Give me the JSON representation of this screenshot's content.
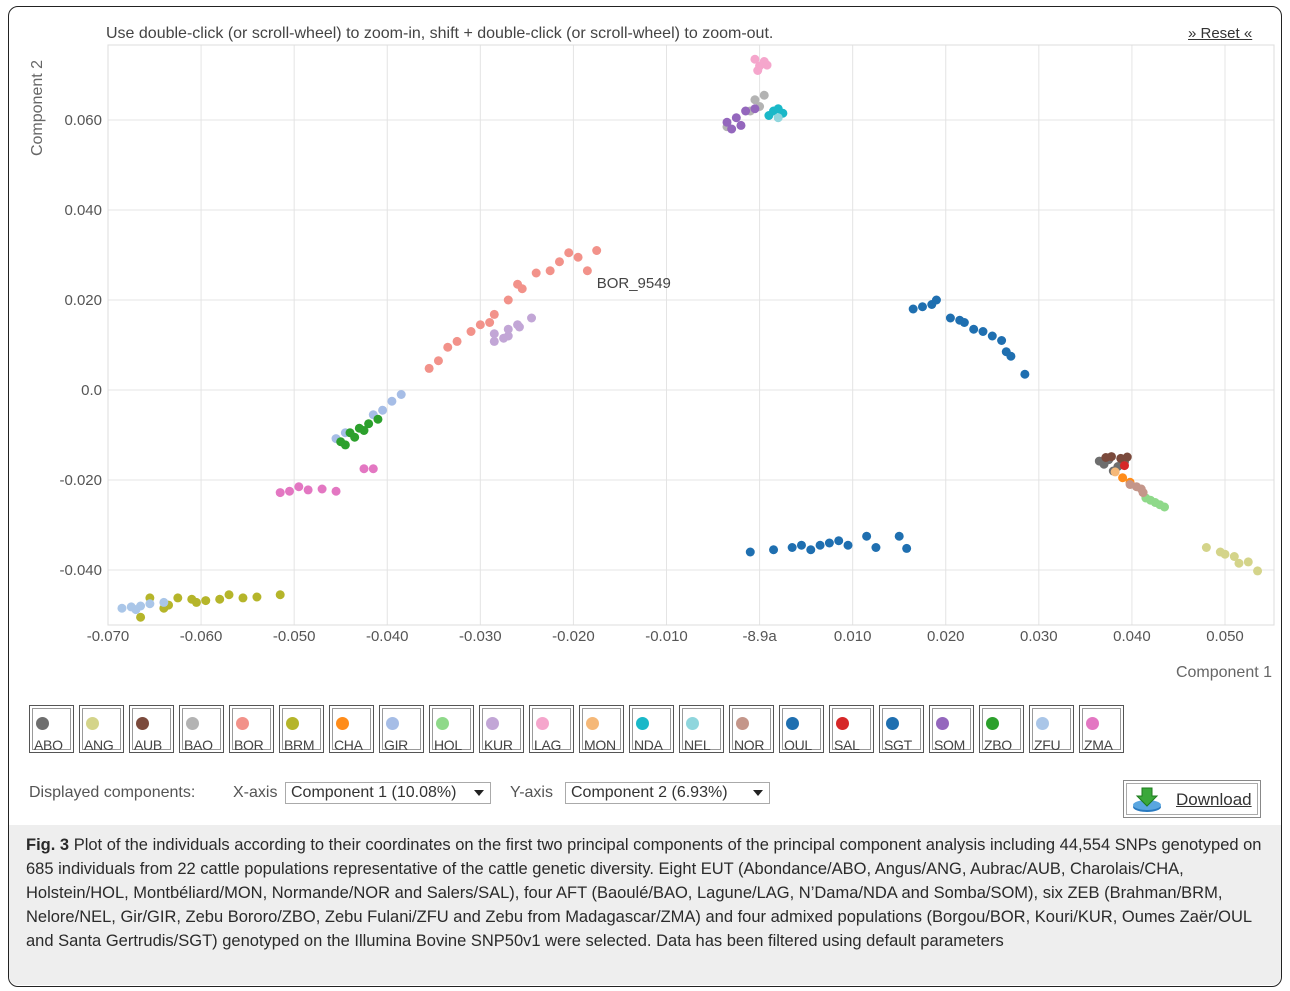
{
  "header": {
    "hint": "Use double-click (or scroll-wheel) to zoom-in, shift + double-click (or scroll-wheel) to zoom-out.",
    "reset": "» Reset «"
  },
  "controls": {
    "displayed_label": "Displayed components:",
    "x_label": "X-axis",
    "x_value": "Component 1 (10.08%)",
    "y_label": "Y-axis",
    "y_value": "Component 2 (6.93%)",
    "download": "Download"
  },
  "caption": {
    "fig": "Fig. 3",
    "text": "Plot of the individuals according to their coordinates on the first two principal components of the principal component analysis including 44,554 SNPs genotyped on 685 individuals from 22 cattle populations representative of the cattle genetic diversity. Eight EUT (Abondance/ABO, Angus/ANG, Aubrac/AUB, Charolais/CHA, Holstein/HOL, Montbéliard/MON, Normande/NOR and Salers/SAL), four AFT (Baoulé/BAO, Lagune/LAG, N’Dama/NDA and Somba/SOM), six ZEB (Brahman/BRM, Nelore/NEL, Gir/GIR, Zebu Bororo/ZBO, Zebu Fulani/ZFU and Zebu from Madagascar/ZMA) and four admixed populations (Borgou/BOR, Kouri/KUR, Oumes Zaër/OUL and Santa Gertrudis/SGT) genotyped on the Illumina Bovine SNP50v1 were selected. Data has been filtered using default parameters"
  },
  "chart_data": {
    "type": "scatter",
    "xlabel": "Component 1",
    "ylabel": "Component 2",
    "xlim": [
      -0.07,
      0.055
    ],
    "ylim": [
      -0.052,
      0.075
    ],
    "x_ticks": [
      "-0.070",
      "-0.060",
      "-0.050",
      "-0.040",
      "-0.030",
      "-0.020",
      "-0.010",
      "-8.9a",
      "0.010",
      "0.020",
      "0.030",
      "0.040",
      "0.050"
    ],
    "x_tick_values": [
      -0.07,
      -0.06,
      -0.05,
      -0.04,
      -0.03,
      -0.02,
      -0.01,
      0.0,
      0.01,
      0.02,
      0.03,
      0.04,
      0.05
    ],
    "y_ticks": [
      "-0.040",
      "-0.020",
      "0.0",
      "0.020",
      "0.040",
      "0.060"
    ],
    "y_tick_values": [
      -0.04,
      -0.02,
      0.0,
      0.02,
      0.04,
      0.06
    ],
    "grid": true,
    "annotation": {
      "text": "BOR_9549",
      "x": -0.0175,
      "y": 0.0238
    },
    "series": [
      {
        "name": "ABO",
        "color": "#6e6e6e",
        "points": [
          [
            0.0375,
            -0.0155
          ],
          [
            0.0385,
            -0.017
          ],
          [
            0.037,
            -0.0165
          ],
          [
            0.0392,
            -0.016
          ],
          [
            0.038,
            -0.018
          ],
          [
            0.0365,
            -0.0158
          ]
        ]
      },
      {
        "name": "ANG",
        "color": "#d4d48a",
        "points": [
          [
            0.048,
            -0.035
          ],
          [
            0.0495,
            -0.036
          ],
          [
            0.051,
            -0.037
          ],
          [
            0.0515,
            -0.0385
          ],
          [
            0.0525,
            -0.0382
          ],
          [
            0.05,
            -0.0365
          ],
          [
            0.0535,
            -0.0402
          ]
        ]
      },
      {
        "name": "AUB",
        "color": "#7b4a3c",
        "points": [
          [
            0.0378,
            -0.0148
          ],
          [
            0.0388,
            -0.0152
          ],
          [
            0.0395,
            -0.0149
          ],
          [
            0.0372,
            -0.015
          ]
        ]
      },
      {
        "name": "BAO",
        "color": "#b3b3b3",
        "points": [
          [
            -0.0005,
            0.0645
          ],
          [
            0.0005,
            0.0655
          ],
          [
            0.0,
            0.063
          ],
          [
            -0.001,
            0.062
          ],
          [
            -0.0035,
            0.0585
          ]
        ]
      },
      {
        "name": "BOR",
        "color": "#f2928a",
        "points": [
          [
            -0.0175,
            0.031
          ],
          [
            -0.0195,
            0.0295
          ],
          [
            -0.0205,
            0.0305
          ],
          [
            -0.0225,
            0.0265
          ],
          [
            -0.024,
            0.026
          ],
          [
            -0.0255,
            0.0225
          ],
          [
            -0.027,
            0.02
          ],
          [
            -0.0285,
            0.0168
          ],
          [
            -0.029,
            0.015
          ],
          [
            -0.03,
            0.0145
          ],
          [
            -0.031,
            0.013
          ],
          [
            -0.0325,
            0.0108
          ],
          [
            -0.0335,
            0.0095
          ],
          [
            -0.0345,
            0.0065
          ],
          [
            -0.0355,
            0.0048
          ],
          [
            -0.0185,
            0.0265
          ],
          [
            -0.0215,
            0.0285
          ],
          [
            -0.026,
            0.0235
          ]
        ]
      },
      {
        "name": "BRM",
        "color": "#b5b52a",
        "points": [
          [
            -0.0515,
            -0.0455
          ],
          [
            -0.054,
            -0.046
          ],
          [
            -0.0555,
            -0.0462
          ],
          [
            -0.057,
            -0.0455
          ],
          [
            -0.058,
            -0.0465
          ],
          [
            -0.0595,
            -0.0468
          ],
          [
            -0.061,
            -0.0465
          ],
          [
            -0.0625,
            -0.0462
          ],
          [
            -0.0635,
            -0.0478
          ],
          [
            -0.064,
            -0.0485
          ],
          [
            -0.0655,
            -0.0462
          ],
          [
            -0.0665,
            -0.0505
          ],
          [
            -0.0605,
            -0.0472
          ]
        ]
      },
      {
        "name": "CHA",
        "color": "#ff8c1a",
        "points": [
          [
            0.039,
            -0.0195
          ],
          [
            0.0398,
            -0.0205
          ]
        ]
      },
      {
        "name": "GIR",
        "color": "#a6bde6",
        "points": [
          [
            -0.0385,
            -0.001
          ],
          [
            -0.0395,
            -0.0025
          ],
          [
            -0.0405,
            -0.0045
          ],
          [
            -0.0415,
            -0.0055
          ],
          [
            -0.0455,
            -0.0108
          ],
          [
            -0.0445,
            -0.0095
          ]
        ]
      },
      {
        "name": "HOL",
        "color": "#8fd98a",
        "points": [
          [
            0.0415,
            -0.024
          ],
          [
            0.0425,
            -0.025
          ],
          [
            0.0435,
            -0.026
          ],
          [
            0.043,
            -0.0255
          ],
          [
            0.042,
            -0.0245
          ]
        ]
      },
      {
        "name": "KUR",
        "color": "#c2a6d6",
        "points": [
          [
            -0.0245,
            0.016
          ],
          [
            -0.026,
            0.0145
          ],
          [
            -0.027,
            0.0135
          ],
          [
            -0.0285,
            0.0125
          ],
          [
            -0.0275,
            0.0115
          ],
          [
            -0.0285,
            0.0108
          ],
          [
            -0.027,
            0.012
          ],
          [
            -0.0258,
            0.014
          ]
        ]
      },
      {
        "name": "LAG",
        "color": "#f5a6cc",
        "points": [
          [
            -0.0005,
            0.0735
          ],
          [
            0.0005,
            0.073
          ],
          [
            0.0,
            0.072
          ],
          [
            -0.0002,
            0.071
          ],
          [
            0.0008,
            0.0722
          ]
        ]
      },
      {
        "name": "MON",
        "color": "#f5b878",
        "points": [
          [
            0.0382,
            -0.0182
          ]
        ]
      },
      {
        "name": "NDA",
        "color": "#1ab8c8",
        "points": [
          [
            0.0015,
            0.062
          ],
          [
            0.001,
            0.061
          ],
          [
            0.002,
            0.0625
          ],
          [
            0.0025,
            0.0615
          ]
        ]
      },
      {
        "name": "NEL",
        "color": "#8fd6dd",
        "points": [
          [
            0.002,
            0.0605
          ]
        ]
      },
      {
        "name": "NOR",
        "color": "#c4968a",
        "points": [
          [
            0.0405,
            -0.0215
          ],
          [
            0.041,
            -0.022
          ],
          [
            0.0398,
            -0.021
          ],
          [
            0.0412,
            -0.0228
          ]
        ]
      },
      {
        "name": "OUL",
        "color": "#1f6fb0",
        "points": [
          [
            -0.001,
            -0.036
          ],
          [
            0.0015,
            -0.0355
          ],
          [
            0.0035,
            -0.035
          ],
          [
            0.0045,
            -0.0345
          ],
          [
            0.0055,
            -0.0355
          ],
          [
            0.0065,
            -0.0345
          ],
          [
            0.0075,
            -0.034
          ],
          [
            0.0085,
            -0.0335
          ],
          [
            0.0095,
            -0.0345
          ],
          [
            0.0115,
            -0.0325
          ],
          [
            0.0125,
            -0.035
          ],
          [
            0.015,
            -0.0325
          ],
          [
            0.0158,
            -0.0352
          ]
        ]
      },
      {
        "name": "SAL",
        "color": "#d62728",
        "points": [
          [
            0.0392,
            -0.0168
          ]
        ]
      },
      {
        "name": "SGT",
        "color": "#1f6fb0",
        "points": [
          [
            0.0165,
            0.018
          ],
          [
            0.0175,
            0.0185
          ],
          [
            0.0185,
            0.019
          ],
          [
            0.019,
            0.02
          ],
          [
            0.0205,
            0.016
          ],
          [
            0.0215,
            0.0155
          ],
          [
            0.022,
            0.015
          ],
          [
            0.023,
            0.0135
          ],
          [
            0.024,
            0.013
          ],
          [
            0.025,
            0.012
          ],
          [
            0.026,
            0.011
          ],
          [
            0.0265,
            0.0085
          ],
          [
            0.027,
            0.0075
          ],
          [
            0.0285,
            0.0035
          ]
        ]
      },
      {
        "name": "SOM",
        "color": "#9467bd",
        "points": [
          [
            -0.0035,
            0.0595
          ],
          [
            -0.0025,
            0.0605
          ],
          [
            -0.0015,
            0.062
          ],
          [
            -0.0005,
            0.0625
          ],
          [
            -0.003,
            0.058
          ],
          [
            -0.002,
            0.0588
          ]
        ]
      },
      {
        "name": "ZBO",
        "color": "#2ca02c",
        "points": [
          [
            -0.041,
            -0.0065
          ],
          [
            -0.042,
            -0.0075
          ],
          [
            -0.043,
            -0.0085
          ],
          [
            -0.044,
            -0.0095
          ],
          [
            -0.045,
            -0.0115
          ],
          [
            -0.0435,
            -0.0105
          ],
          [
            -0.0425,
            -0.009
          ],
          [
            -0.0445,
            -0.0122
          ]
        ]
      },
      {
        "name": "ZFU",
        "color": "#aac6e8",
        "points": [
          [
            -0.0685,
            -0.0485
          ],
          [
            -0.0675,
            -0.0482
          ],
          [
            -0.0665,
            -0.048
          ],
          [
            -0.0655,
            -0.0475
          ],
          [
            -0.064,
            -0.0472
          ],
          [
            -0.067,
            -0.0488
          ]
        ]
      },
      {
        "name": "ZMA",
        "color": "#e377c2",
        "points": [
          [
            -0.0505,
            -0.0225
          ],
          [
            -0.0495,
            -0.0215
          ],
          [
            -0.0485,
            -0.0222
          ],
          [
            -0.0515,
            -0.0228
          ],
          [
            -0.047,
            -0.022
          ],
          [
            -0.0455,
            -0.0225
          ],
          [
            -0.0425,
            -0.0175
          ],
          [
            -0.0415,
            -0.0175
          ]
        ]
      }
    ]
  }
}
